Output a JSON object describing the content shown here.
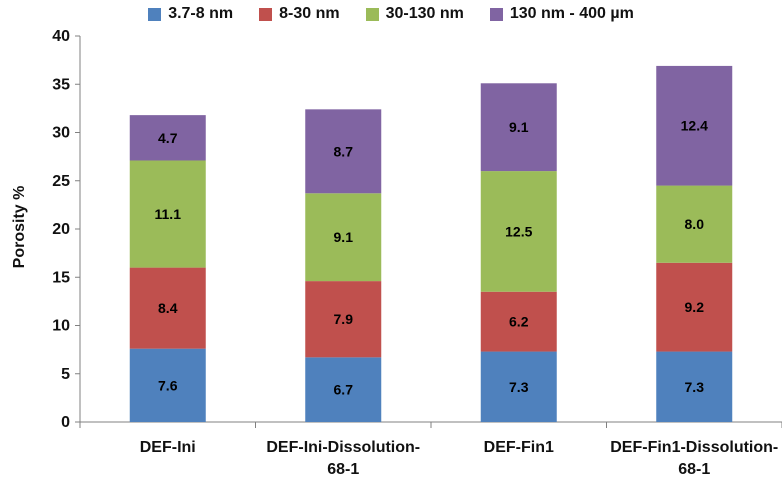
{
  "chart_data": {
    "type": "bar",
    "stacked": true,
    "categories": [
      "DEF-Ini",
      "DEF-Ini-Dissolution-68-1",
      "DEF-Fin1",
      "DEF-Fin1-Dissolution-68-1"
    ],
    "category_lines": [
      [
        "DEF-Ini"
      ],
      [
        "DEF-Ini-Dissolution-",
        "68-1"
      ],
      [
        "DEF-Fin1"
      ],
      [
        "DEF-Fin1-Dissolution-",
        "68-1"
      ]
    ],
    "series": [
      {
        "name": "3.7-8 nm",
        "color": "#4f81bd",
        "values": [
          7.6,
          6.7,
          7.3,
          7.3
        ],
        "labels": [
          "7.6",
          "6.7",
          "7.3",
          "7.3"
        ]
      },
      {
        "name": "8-30 nm",
        "color": "#c0504d",
        "values": [
          8.4,
          7.9,
          6.2,
          9.2
        ],
        "labels": [
          "8.4",
          "7.9",
          "6.2",
          "9.2"
        ]
      },
      {
        "name": "30-130 nm",
        "color": "#9bbb59",
        "values": [
          11.1,
          9.1,
          12.5,
          8.0
        ],
        "labels": [
          "11.1",
          "9.1",
          "12.5",
          "8.0"
        ]
      },
      {
        "name": "130 nm - 400 µm",
        "color": "#8064a2",
        "values": [
          4.7,
          8.7,
          9.1,
          12.4
        ],
        "labels": [
          "4.7",
          "8.7",
          "9.1",
          "12.4"
        ]
      }
    ],
    "ylabel": "Porosity %",
    "xlabel": "",
    "ylim": [
      0,
      40
    ],
    "yticks": [
      0,
      5,
      10,
      15,
      20,
      25,
      30,
      35,
      40
    ],
    "grid": false,
    "legend_position": "top"
  }
}
